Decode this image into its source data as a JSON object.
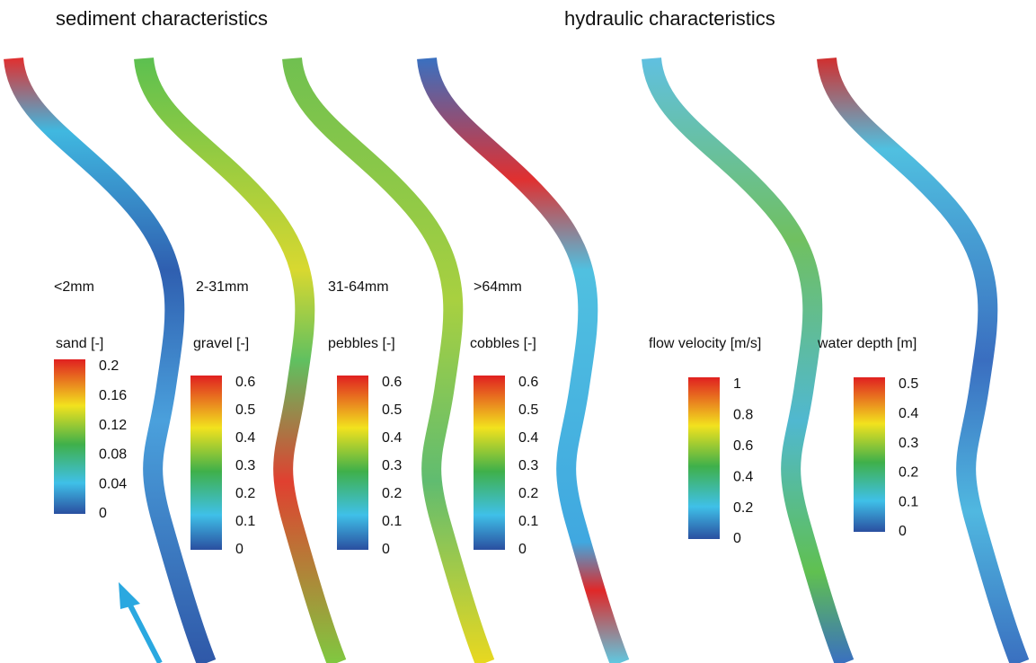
{
  "header": {
    "sediment_title": "sediment characteristics",
    "hydraulic_title": "hydraulic characteristics"
  },
  "panels": [
    {
      "size_class": "<2mm",
      "label": "sand [-]",
      "ticks": [
        0.2,
        0.16,
        0.12,
        0.08,
        0.04,
        0
      ]
    },
    {
      "size_class": "2-31mm",
      "label": "gravel [-]",
      "ticks": [
        0.6,
        0.5,
        0.4,
        0.3,
        0.2,
        0.1,
        0
      ]
    },
    {
      "size_class": "31-64mm",
      "label": "pebbles [-]",
      "ticks": [
        0.6,
        0.5,
        0.4,
        0.3,
        0.2,
        0.1,
        0
      ]
    },
    {
      "size_class": ">64mm",
      "label": "cobbles [-]",
      "ticks": [
        0.6,
        0.5,
        0.4,
        0.3,
        0.2,
        0.1,
        0
      ]
    },
    {
      "label": "flow velocity [m/s]",
      "ticks": [
        1,
        0.8,
        0.6,
        0.4,
        0.2,
        0
      ]
    },
    {
      "label": "water depth [m]",
      "ticks": [
        0.5,
        0.4,
        0.3,
        0.2,
        0.1,
        0
      ]
    }
  ]
}
